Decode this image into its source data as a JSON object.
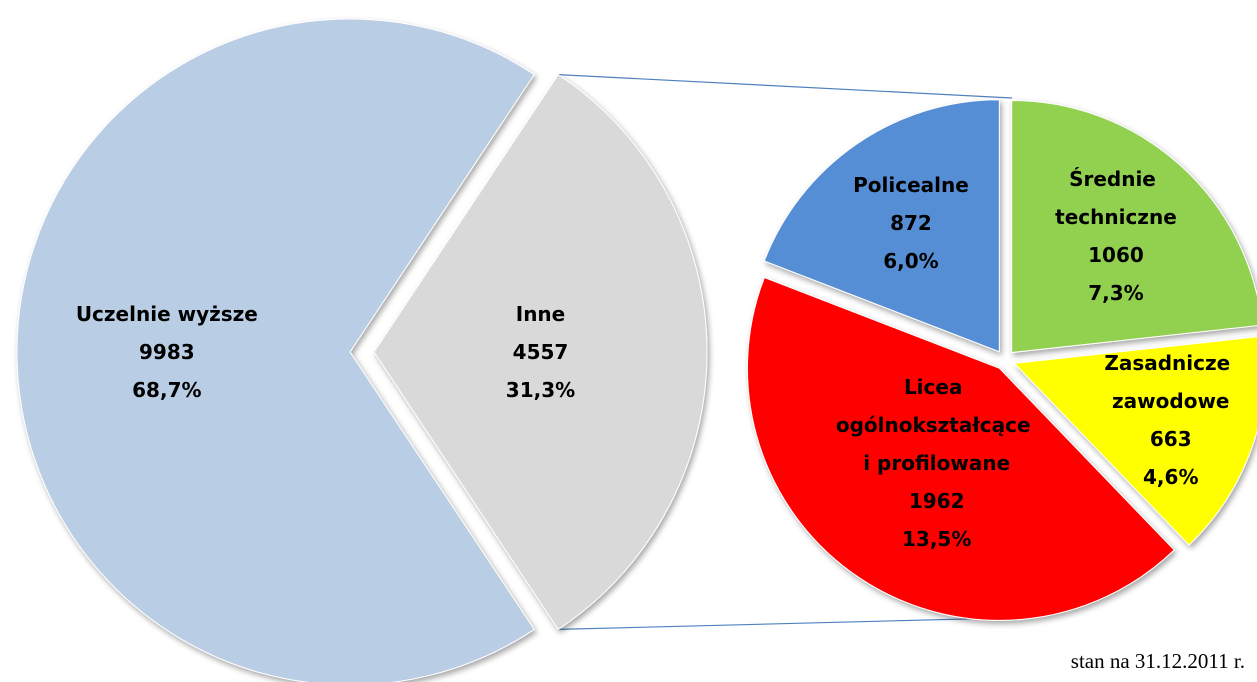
{
  "chart_data": [
    {
      "type": "pie",
      "categories": [
        "Uczelnie wyższe",
        "Inne"
      ],
      "values": [
        9983,
        4557
      ],
      "percents": [
        68.7,
        31.3
      ],
      "percent_labels": [
        "68,7%",
        "31,3%"
      ],
      "colors": [
        "#b9cde5",
        "#d9d9d9"
      ],
      "note": "stan na 31.12.2011 r."
    },
    {
      "type": "pie",
      "categories": [
        "Policealne",
        "Średnie techniczne",
        "Zasadnicze zawodowe",
        "Licea ogólnokształcące i profilowane"
      ],
      "values": [
        872,
        1060,
        663,
        1962
      ],
      "percents": [
        6.0,
        7.3,
        4.6,
        13.5
      ],
      "percent_labels": [
        "6,0%",
        "7,3%",
        "4,6%",
        "13,5%"
      ],
      "colors": [
        "#558ed5",
        "#92d050",
        "#ffff00",
        "#ff0000"
      ]
    }
  ]
}
